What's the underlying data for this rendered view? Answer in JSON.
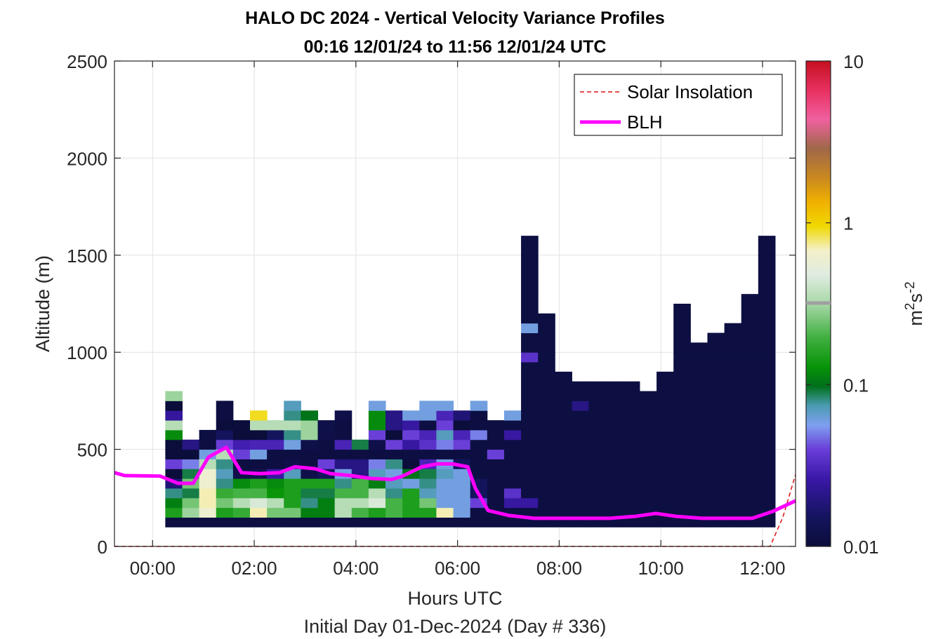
{
  "chart_data": {
    "type": "heatmap",
    "title": "HALO DC 2024 - Vertical Velocity Variance Profiles",
    "subtitle": "00:16 12/01/24 to 11:56 12/01/24  UTC",
    "xlabel": "Hours UTC",
    "xlabel2": "Initial Day 01-Dec-2024 (Day # 336)",
    "ylabel": "Altitude (m)",
    "xlim": [
      -0.75,
      12.65
    ],
    "ylim": [
      0,
      2500
    ],
    "x_ticks": [
      0,
      2,
      4,
      6,
      8,
      10,
      12
    ],
    "x_tick_labels": [
      "00:00",
      "02:00",
      "04:00",
      "06:00",
      "08:00",
      "10:00",
      "12:00"
    ],
    "y_ticks": [
      0,
      500,
      1000,
      1500,
      2000,
      2500
    ],
    "y_tick_labels": [
      "0",
      "500",
      "1000",
      "1500",
      "2000",
      "2500"
    ],
    "grid": true,
    "colorbar": {
      "label": "m²s⁻²",
      "label_base": "m",
      "label_exp1": "2",
      "label_mid": "s",
      "label_exp2": "-2",
      "scale": "log",
      "range": [
        0.01,
        10
      ],
      "ticks": [
        0.01,
        0.1,
        1,
        10
      ],
      "tick_labels": [
        "0.01",
        "0.1",
        "1",
        "10"
      ]
    },
    "legend": {
      "placement": "top-right",
      "entries": [
        {
          "label": "Solar Insolation",
          "color": "#e01010",
          "style": "dashed"
        },
        {
          "label": "BLH",
          "color": "#ff00ff",
          "style": "solid"
        }
      ]
    },
    "heatmap": {
      "time_bin_hours": 0.3333,
      "altitude_bin_m": 50,
      "first_bin_start_hours": 0.25,
      "first_bin_altitude_m": 100,
      "columns": [
        [
          0.011,
          0.15,
          0.11,
          0.08,
          0.018,
          0.009,
          0.04,
          0.009,
          0.009,
          0.12,
          0.35,
          0.024,
          0.009,
          0.3
        ],
        [
          0.011,
          0.3,
          0.25,
          0.09,
          0.25,
          0.09,
          0.05,
          0.009,
          0.02
        ],
        [
          0.011,
          0.6,
          0.7,
          0.7,
          0.6,
          0.6,
          0.35,
          0.06,
          0.011,
          0.011
        ],
        [
          0.011,
          0.15,
          0.25,
          0.18,
          0.08,
          0.07,
          0.08,
          0.35,
          0.04,
          0.015,
          0.009,
          0.011,
          0.011
        ],
        [
          0.011,
          0.18,
          0.35,
          0.2,
          0.12,
          0.012,
          0.011,
          0.04,
          0.028,
          0.009,
          0.009
        ],
        [
          0.011,
          0.7,
          0.45,
          0.2,
          0.15,
          0.013,
          0.011,
          0.06,
          0.03,
          0.009,
          0.35,
          0.9
        ],
        [
          0.011,
          0.25,
          0.35,
          0.13,
          0.12,
          0.025,
          0.011,
          0.011,
          0.03,
          0.015,
          0.35
        ],
        [
          0.011,
          0.25,
          0.15,
          0.15,
          0.15,
          0.07,
          0.012,
          0.011,
          0.06,
          0.08,
          0.35,
          0.08,
          0.07
        ],
        [
          0.011,
          0.11,
          0.08,
          0.09,
          0.15,
          0.012,
          0.011,
          0.011,
          0.012,
          0.3,
          0.3,
          0.1
        ],
        [
          0.011,
          0.11,
          0.11,
          0.09,
          0.15,
          0.015,
          0.04,
          0.011,
          0.011,
          0.012,
          0.012
        ],
        [
          0.011,
          0.35,
          0.35,
          0.2,
          0.08,
          0.06,
          0.02,
          0.011,
          0.03,
          0.011,
          0.011,
          0.012
        ],
        [
          0.011,
          0.2,
          0.35,
          0.2,
          0.2,
          0.02,
          0.02,
          0.011,
          0.09
        ],
        [
          0.011,
          0.15,
          0.45,
          0.35,
          0.11,
          0.07,
          0.05,
          0.011,
          0.012,
          0.04,
          0.12,
          0.12,
          0.06
        ],
        [
          0.011,
          0.2,
          0.2,
          0.08,
          0.07,
          0.06,
          0.08,
          0.011,
          0.04,
          0.009,
          0.02,
          0.02
        ],
        [
          0.011,
          0.15,
          0.15,
          0.15,
          0.06,
          0.1,
          0.009,
          0.011,
          0.025,
          0.04,
          0.025,
          0.06
        ],
        [
          0.011,
          0.15,
          0.25,
          0.07,
          0.08,
          0.09,
          0.03,
          0.011,
          0.035,
          0.03,
          0.011,
          0.06,
          0.06
        ],
        [
          0.011,
          0.7,
          0.06,
          0.06,
          0.06,
          0.07,
          0.06,
          0.011,
          0.05,
          0.07,
          0.04,
          0.03,
          0.06
        ],
        [
          0.011,
          0.06,
          0.06,
          0.06,
          0.06,
          0.06,
          0.015,
          0.011,
          0.04,
          0.03,
          0.009,
          0.018
        ],
        [
          0.011,
          0.011,
          0.04,
          0.015,
          0.015,
          0.011,
          0.011,
          0.011,
          0.011,
          0.05,
          0.011,
          0.011,
          0.06
        ],
        [
          0.011,
          0.011,
          0.011,
          0.011,
          0.011,
          0.011,
          0.011,
          0.04,
          0.011,
          0.011,
          0.011
        ],
        [
          0.011,
          0.011,
          0.025,
          0.035,
          0.011,
          0.011,
          0.011,
          0.011,
          0.011,
          0.025,
          0.011,
          0.06
        ],
        [
          0.011,
          0.011,
          0.025,
          0.011,
          0.011,
          0.011,
          0.011,
          0.011,
          0.011,
          0.011,
          0.011,
          0.011,
          0.011,
          0.011,
          0.011,
          0.011,
          0.011,
          0.035,
          0.011,
          0.011,
          0.06,
          0.011,
          0.011,
          0.011,
          0.011,
          0.011,
          0.011,
          0.011,
          0.011,
          0.011
        ],
        [
          0.011,
          0.011,
          0.011,
          0.011,
          0.011,
          0.011,
          0.011,
          0.011,
          0.011,
          0.011,
          0.011,
          0.011,
          0.011,
          0.011,
          0.011,
          0.011,
          0.011,
          0.011,
          0.011,
          0.011,
          0.011,
          0.011
        ],
        [
          0.011,
          0.011,
          0.011,
          0.011,
          0.011,
          0.011,
          0.011,
          0.011,
          0.011,
          0.011,
          0.011,
          0.011,
          0.011,
          0.011,
          0.011,
          0.011
        ],
        [
          0.011,
          0.011,
          0.011,
          0.011,
          0.011,
          0.011,
          0.011,
          0.011,
          0.011,
          0.011,
          0.011,
          0.011,
          0.02,
          0.011,
          0.011
        ],
        [
          0.011,
          0.011,
          0.011,
          0.011,
          0.011,
          0.011,
          0.011,
          0.011,
          0.011,
          0.011,
          0.011,
          0.011,
          0.011,
          0.011,
          0.011
        ],
        [
          0.011,
          0.011,
          0.011,
          0.011,
          0.011,
          0.011,
          0.011,
          0.011,
          0.011,
          0.011,
          0.011,
          0.011,
          0.011,
          0.011,
          0.011
        ],
        [
          0.011,
          0.011,
          0.011,
          0.011,
          0.011,
          0.011,
          0.011,
          0.011,
          0.011,
          0.011,
          0.011,
          0.011,
          0.011,
          0.011,
          0.011
        ],
        [
          0.011,
          0.011,
          0.011,
          0.011,
          0.011,
          0.011,
          0.011,
          0.011,
          0.011,
          0.011,
          0.011,
          0.011,
          0.011,
          0.011
        ],
        [
          0.011,
          0.011,
          0.011,
          0.011,
          0.011,
          0.011,
          0.011,
          0.011,
          0.011,
          0.011,
          0.011,
          0.011,
          0.011,
          0.011,
          0.011,
          0.011
        ],
        [
          0.011,
          0.011,
          0.011,
          0.011,
          0.011,
          0.011,
          0.011,
          0.011,
          0.011,
          0.011,
          0.011,
          0.011,
          0.011,
          0.011,
          0.011,
          0.011,
          0.011,
          0.011,
          0.011,
          0.011,
          0.011,
          0.011,
          0.011
        ],
        [
          0.011,
          0.011,
          0.011,
          0.011,
          0.011,
          0.011,
          0.011,
          0.011,
          0.011,
          0.011,
          0.011,
          0.011,
          0.011,
          0.011,
          0.011,
          0.011,
          0.011,
          0.011,
          0.011
        ],
        [
          0.011,
          0.011,
          0.011,
          0.011,
          0.011,
          0.011,
          0.011,
          0.011,
          0.011,
          0.011,
          0.011,
          0.011,
          0.011,
          0.011,
          0.011,
          0.011,
          0.011,
          0.011,
          0.011,
          0.011
        ],
        [
          0.011,
          0.011,
          0.011,
          0.011,
          0.011,
          0.011,
          0.011,
          0.011,
          0.011,
          0.011,
          0.011,
          0.011,
          0.011,
          0.011,
          0.011,
          0.011,
          0.011,
          0.011,
          0.011,
          0.011,
          0.011
        ],
        [
          0.011,
          0.011,
          0.011,
          0.011,
          0.011,
          0.011,
          0.011,
          0.011,
          0.011,
          0.011,
          0.011,
          0.011,
          0.011,
          0.011,
          0.011,
          0.011,
          0.011,
          0.011,
          0.011,
          0.011,
          0.011,
          0.011,
          0.011,
          0.011
        ],
        [
          0.011,
          0.011,
          0.011,
          0.011,
          0.011,
          0.011,
          0.011,
          0.011,
          0.011,
          0.011,
          0.011,
          0.011,
          0.011,
          0.011,
          0.011,
          0.011,
          0.011,
          0.011,
          0.011,
          0.011,
          0.011,
          0.011,
          0.011,
          0.011,
          0.011,
          0.011,
          0.011,
          0.011,
          0.011,
          0.011
        ]
      ]
    },
    "blh": {
      "x": [
        -0.75,
        -0.55,
        0.15,
        0.5,
        0.8,
        1.1,
        1.45,
        1.75,
        2.1,
        2.5,
        2.8,
        3.2,
        3.5,
        3.9,
        4.3,
        4.7,
        4.9,
        5.3,
        5.6,
        5.9,
        6.2,
        6.35,
        6.6,
        7.0,
        7.5,
        8.0,
        8.5,
        9.0,
        9.5,
        9.9,
        10.3,
        10.8,
        11.3,
        11.8,
        12.2,
        12.65
      ],
      "y": [
        380,
        365,
        362,
        325,
        325,
        460,
        510,
        380,
        375,
        380,
        410,
        400,
        375,
        365,
        350,
        345,
        360,
        410,
        425,
        425,
        410,
        300,
        185,
        160,
        145,
        145,
        145,
        145,
        155,
        170,
        155,
        145,
        145,
        145,
        180,
        235
      ]
    },
    "solar_insolation": {
      "x": [
        -0.75,
        12.15,
        12.4,
        12.65
      ],
      "y": [
        0,
        0,
        150,
        370
      ]
    }
  }
}
